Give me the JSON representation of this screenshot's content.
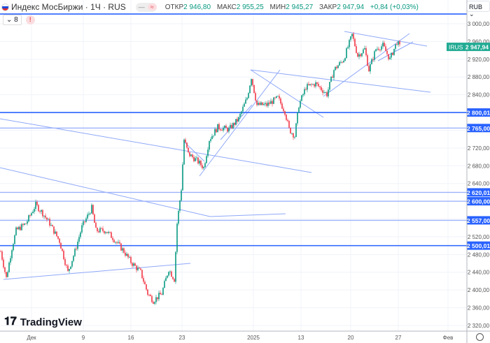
{
  "header": {
    "title": "Индекс МосБиржи · 1Ч · RUS",
    "open_label": "ОТКР",
    "open": "2 946,80",
    "high_label": "МАКС",
    "high": "2 955,25",
    "low_label": "МИН",
    "low": "2 945,27",
    "close_label": "ЗАКР",
    "close": "2 947,94",
    "change": "+0,84 (+0,03%)",
    "indicators_count": "8",
    "pill_left": "—",
    "pill_right": "≈",
    "warn": "!"
  },
  "currency": "RUB ⌄",
  "logo": "TradingView",
  "colors": {
    "up": "#089981",
    "down": "#f23645",
    "level": "#2962ff",
    "trend": "#8fa8f8"
  },
  "chart_data": {
    "type": "candlestick",
    "symbol": "IRUS",
    "last_price": "2 947,94",
    "ylim": [
      2300,
      3030
    ],
    "y_ticks": [
      "3 000,00",
      "2 960,00",
      "2 920,00",
      "2 880,00",
      "2 840,00",
      "2 720,00",
      "2 680,00",
      "2 640,00",
      "2 520,00",
      "2 480,00",
      "2 440,00",
      "2 400,00",
      "2 360,00",
      "2 320,00"
    ],
    "y_tick_values": [
      3000,
      2960,
      2920,
      2880,
      2840,
      2720,
      2680,
      2640,
      2520,
      2480,
      2440,
      2400,
      2360,
      2320
    ],
    "x_ticks": [
      "Дек",
      "9",
      "16",
      "23",
      "2025",
      "13",
      "20",
      "27",
      "Фев"
    ],
    "levels": [
      {
        "value": 2800.01,
        "label": "2 800,01"
      },
      {
        "value": 2765,
        "label": "2 765,00"
      },
      {
        "value": 2620.01,
        "label": "2 620,01"
      },
      {
        "value": 2600,
        "label": "2 600,00"
      },
      {
        "value": 2557,
        "label": "2 557,00"
      },
      {
        "value": 2500.01,
        "label": "2 500,01"
      },
      {
        "value": 3022,
        "label": ""
      }
    ],
    "close_path": [
      [
        0,
        2487
      ],
      [
        4,
        2427
      ],
      [
        8,
        2495
      ],
      [
        11,
        2534
      ],
      [
        18,
        2550
      ],
      [
        25,
        2592
      ],
      [
        30,
        2573
      ],
      [
        35,
        2550
      ],
      [
        42,
        2510
      ],
      [
        48,
        2440
      ],
      [
        53,
        2487
      ],
      [
        58,
        2542
      ],
      [
        65,
        2585
      ],
      [
        68,
        2534
      ],
      [
        75,
        2534
      ],
      [
        80,
        2518
      ],
      [
        88,
        2487
      ],
      [
        93,
        2463
      ],
      [
        100,
        2440
      ],
      [
        105,
        2392
      ],
      [
        109,
        2376
      ],
      [
        115,
        2392
      ],
      [
        120,
        2447
      ],
      [
        124,
        2424
      ],
      [
        126,
        2550
      ],
      [
        129,
        2628
      ],
      [
        131,
        2739
      ],
      [
        134,
        2707
      ],
      [
        140,
        2692
      ],
      [
        145,
        2676
      ],
      [
        149,
        2739
      ],
      [
        155,
        2767
      ],
      [
        163,
        2762
      ],
      [
        170,
        2786
      ],
      [
        176,
        2833
      ],
      [
        179,
        2880
      ],
      [
        183,
        2817
      ],
      [
        190,
        2817
      ],
      [
        198,
        2833
      ],
      [
        203,
        2802
      ],
      [
        206,
        2762
      ],
      [
        210,
        2747
      ],
      [
        213,
        2817
      ],
      [
        218,
        2857
      ],
      [
        225,
        2865
      ],
      [
        233,
        2841
      ],
      [
        238,
        2896
      ],
      [
        245,
        2920
      ],
      [
        251,
        2975
      ],
      [
        255,
        2928
      ],
      [
        260,
        2943
      ],
      [
        263,
        2896
      ],
      [
        268,
        2943
      ],
      [
        273,
        2951
      ],
      [
        278,
        2920
      ],
      [
        283,
        2959
      ],
      [
        285,
        2948
      ]
    ]
  }
}
